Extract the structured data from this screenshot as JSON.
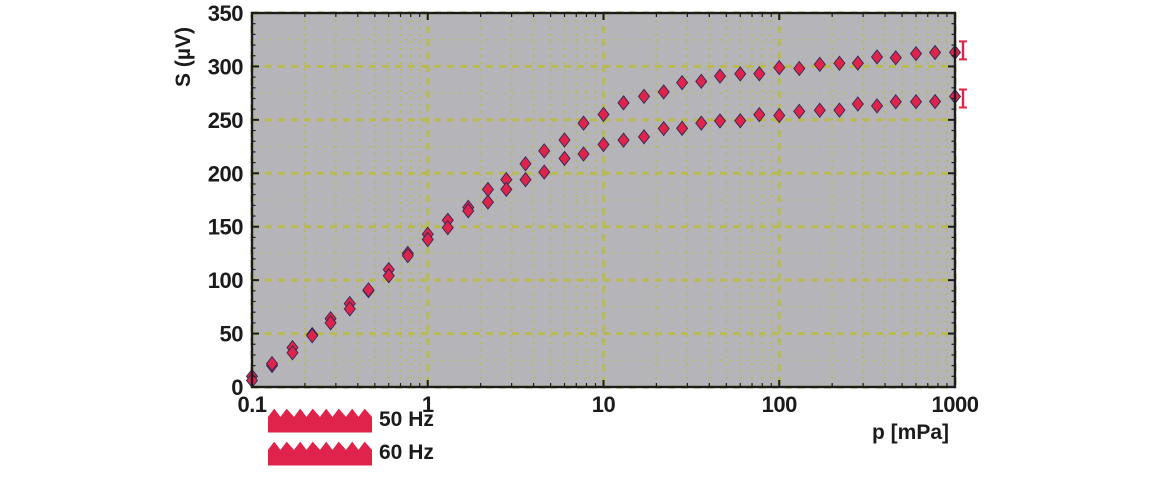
{
  "chart_data": {
    "type": "scatter",
    "x_scale": "log",
    "title": "",
    "xlabel": "p [mPa]",
    "ylabel": "S (µV)",
    "xlim": [
      0.1,
      1000
    ],
    "ylim": [
      0,
      350
    ],
    "grid": true,
    "legend_position": "below-axis-left",
    "x_ticks": [
      0.1,
      1,
      10,
      100,
      1000
    ],
    "x_tick_labels": [
      "0.1",
      "1",
      "10",
      "100",
      "1000"
    ],
    "y_ticks": [
      0,
      50,
      100,
      150,
      200,
      250,
      300,
      350
    ],
    "y_tick_labels": [
      "0",
      "50",
      "100",
      "150",
      "200",
      "250",
      "300",
      "350"
    ],
    "colors": {
      "marker": "#e0234b",
      "marker_edge": "#2d2a55",
      "grid": "#b9ba4f",
      "plot_bg": "#b5b4b9",
      "frame": "#1c1c1c",
      "text": "#1b1b1b"
    },
    "series": [
      {
        "name": "50 Hz",
        "marker": "diamond",
        "color": "#e0234b",
        "x": [
          0.1,
          0.13,
          0.17,
          0.22,
          0.28,
          0.36,
          0.46,
          0.6,
          0.77,
          1.0,
          1.3,
          1.7,
          2.2,
          2.8,
          3.6,
          4.6,
          6.0,
          7.7,
          10,
          13,
          17,
          22,
          28,
          36,
          46,
          60,
          77,
          100,
          130,
          170,
          220,
          280,
          360,
          460,
          600,
          770,
          1000
        ],
        "y": [
          10,
          22,
          35,
          50,
          63,
          78,
          92,
          108,
          126,
          142,
          156,
          170,
          183,
          195,
          208,
          221,
          233,
          245,
          256,
          265,
          272,
          278,
          283,
          287,
          290,
          293,
          295,
          297,
          299,
          301,
          303,
          305,
          307,
          309,
          311,
          313,
          315
        ]
      },
      {
        "name": "60 Hz",
        "marker": "diamond",
        "color": "#e0234b",
        "x": [
          0.1,
          0.13,
          0.17,
          0.22,
          0.28,
          0.36,
          0.46,
          0.6,
          0.77,
          1.0,
          1.3,
          1.7,
          2.2,
          2.8,
          3.6,
          4.6,
          6.0,
          7.7,
          10,
          13,
          17,
          22,
          28,
          36,
          46,
          60,
          77,
          100,
          130,
          170,
          220,
          280,
          360,
          460,
          600,
          770,
          1000
        ],
        "y": [
          8,
          20,
          33,
          47,
          60,
          75,
          89,
          105,
          122,
          138,
          151,
          163,
          174,
          184,
          194,
          203,
          212,
          219,
          226,
          231,
          236,
          240,
          243,
          246,
          249,
          251,
          253,
          255,
          257,
          259,
          261,
          263,
          264,
          266,
          267,
          269,
          270
        ]
      }
    ]
  }
}
